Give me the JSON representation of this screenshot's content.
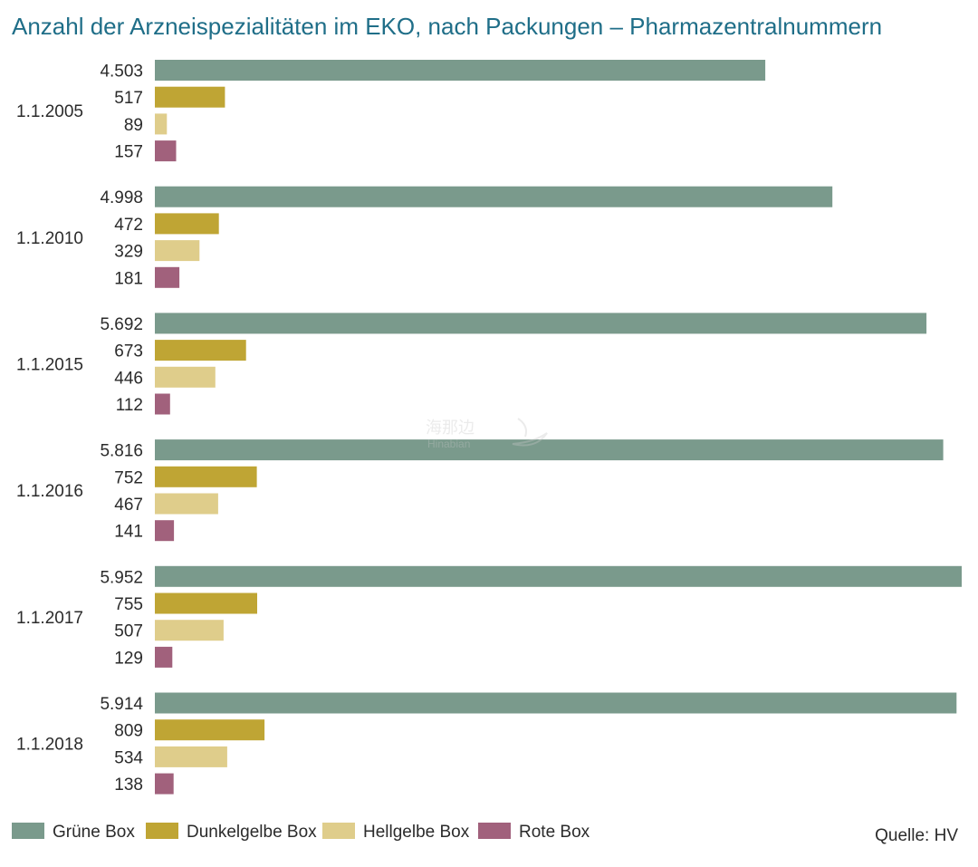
{
  "chart_data": {
    "type": "bar",
    "orientation": "horizontal",
    "title": "Anzahl der Arzneispezialitäten im EKO, nach Packungen – Pharmazentralnummern",
    "categories": [
      "1.1.2005",
      "1.1.2010",
      "1.1.2015",
      "1.1.2016",
      "1.1.2017",
      "1.1.2018"
    ],
    "series": [
      {
        "name": "Grüne Box",
        "color": "#7a9a8c",
        "values": [
          4503,
          4998,
          5692,
          5816,
          5952,
          5914
        ],
        "labels": [
          "4.503",
          "4.998",
          "5.692",
          "5.816",
          "5.952",
          "5.914"
        ]
      },
      {
        "name": "Dunkelgelbe Box",
        "color": "#bfa534",
        "values": [
          517,
          472,
          673,
          752,
          755,
          809
        ],
        "labels": [
          "517",
          "472",
          "673",
          "752",
          "755",
          "809"
        ]
      },
      {
        "name": "Hellgelbe Box",
        "color": "#dfcd8b",
        "values": [
          89,
          329,
          446,
          467,
          507,
          534
        ],
        "labels": [
          "89",
          "329",
          "446",
          "467",
          "507",
          "534"
        ]
      },
      {
        "name": "Rote Box",
        "color": "#a1617c",
        "values": [
          157,
          181,
          112,
          141,
          129,
          138
        ],
        "labels": [
          "157",
          "181",
          "112",
          "141",
          "129",
          "138"
        ]
      }
    ],
    "xlim": [
      0,
      5952
    ],
    "grid": false,
    "legend_position": "bottom-left",
    "source": "Quelle: HV"
  },
  "watermark": {
    "text_cn": "海那边",
    "text_en": "Hinabian"
  },
  "colors": {
    "title": "#1f6e88",
    "text": "#2b2b2b"
  }
}
